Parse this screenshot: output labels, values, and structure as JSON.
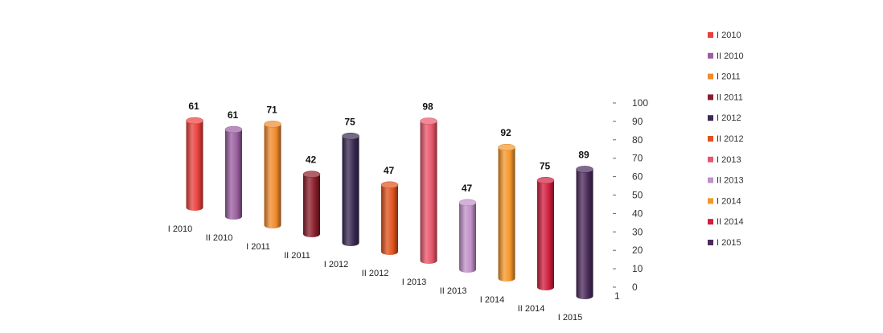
{
  "chart_data": {
    "type": "bar",
    "style": "3d-cylinder",
    "title": "",
    "xlabel": "",
    "ylabel": "",
    "categories": [
      "I 2010",
      "II 2010",
      "I 2011",
      "II 2011",
      "I 2012",
      "II 2012",
      "I 2013",
      "II 2013",
      "I 2014",
      "II 2014",
      "I 2015"
    ],
    "values": [
      61,
      61,
      71,
      42,
      75,
      47,
      98,
      47,
      92,
      75,
      89
    ],
    "ylim": [
      0,
      100
    ],
    "y_ticks": [
      "100",
      "90",
      "80",
      "70",
      "60",
      "50",
      "40",
      "30",
      "20",
      "10",
      "0"
    ],
    "axis_corner_label": "1",
    "grid": false,
    "legend_position": "right",
    "legend": [
      "I 2010",
      "II 2010",
      "I 2011",
      "II 2011",
      "I 2012",
      "II 2012",
      "I 2013",
      "II 2013",
      "I 2014",
      "II 2014",
      "I 2015"
    ],
    "colors": [
      "#e8403c",
      "#9a5fa0",
      "#f08a2c",
      "#8a1e2a",
      "#3a2a52",
      "#e0521e",
      "#e8566a",
      "#c090c8",
      "#f5962a",
      "#d01e3c",
      "#4a2a5a"
    ]
  }
}
